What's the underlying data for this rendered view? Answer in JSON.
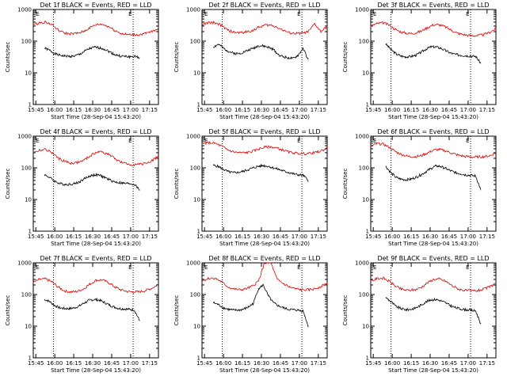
{
  "figure": {
    "ylabel": "Counts/sec",
    "xlabel": "Start Time (28-Sep-04 15:43:20)",
    "colors": {
      "events": "#000000",
      "lld": "#e00000",
      "axes": "#000000",
      "background": "#ffffff"
    },
    "flag_labels": [
      "E",
      "E"
    ]
  },
  "chart_data": [
    {
      "type": "line",
      "title": "Det 1f BLACK = Events, RED = LLD",
      "xlabel": "Start Time (28-Sep-04 15:43:20)",
      "ylabel": "Counts/sec",
      "x_tick_labels": [
        "15:45",
        "16:00",
        "16:15",
        "16:30",
        "16:45",
        "17:00",
        "17:15"
      ],
      "x_tick_values": [
        "15:45",
        "16:00",
        "16:15",
        "16:30",
        "16:45",
        "17:00",
        "17:15"
      ],
      "xlim": [
        "15:43",
        "17:22"
      ],
      "ylim": [
        1,
        1000
      ],
      "yscale": "log",
      "y_tick_labels": [
        "1",
        "10",
        "100",
        "1000"
      ],
      "vlines": [
        "15:59",
        "17:02"
      ],
      "series": [
        {
          "name": "Events",
          "color": "#000000",
          "x_start": "15:52",
          "x_end": "17:07",
          "values": [
            60,
            52,
            40,
            36,
            34,
            33,
            34,
            38,
            48,
            58,
            64,
            62,
            56,
            46,
            38,
            34,
            33,
            32,
            33,
            30
          ]
        },
        {
          "name": "LLD",
          "color": "#e00000",
          "x_start": "15:43",
          "x_end": "17:22",
          "values": [
            320,
            380,
            400,
            330,
            220,
            180,
            170,
            175,
            200,
            260,
            330,
            340,
            290,
            220,
            175,
            160,
            158,
            160,
            175,
            200,
            260
          ]
        }
      ]
    },
    {
      "type": "line",
      "title": "Det 2f BLACK = Events, RED = LLD",
      "xlabel": "Start Time (28-Sep-04 15:43:20)",
      "ylabel": "Counts/sec",
      "x_tick_labels": [
        "15:45",
        "16:00",
        "16:15",
        "16:30",
        "16:45",
        "17:00",
        "17:15"
      ],
      "x_tick_values": [
        "15:45",
        "16:00",
        "16:15",
        "16:30",
        "16:45",
        "17:00",
        "17:15"
      ],
      "xlim": [
        "15:43",
        "17:22"
      ],
      "ylim": [
        1,
        1000
      ],
      "yscale": "log",
      "y_tick_labels": [
        "1",
        "10",
        "100",
        "1000"
      ],
      "vlines": [
        "15:59",
        "17:02"
      ],
      "series": [
        {
          "name": "Events",
          "color": "#000000",
          "x_start": "15:52",
          "x_end": "17:07",
          "values": [
            65,
            80,
            60,
            48,
            42,
            40,
            45,
            52,
            60,
            72,
            70,
            64,
            55,
            38,
            32,
            30,
            28,
            36,
            60,
            25
          ]
        },
        {
          "name": "LLD",
          "color": "#e00000",
          "x_start": "15:43",
          "x_end": "17:22",
          "values": [
            330,
            380,
            390,
            320,
            230,
            190,
            185,
            195,
            215,
            270,
            320,
            320,
            280,
            220,
            180,
            175,
            180,
            200,
            350,
            200,
            290
          ]
        }
      ]
    },
    {
      "type": "line",
      "title": "Det 3f BLACK = Events, RED = LLD",
      "xlabel": "Start Time (28-Sep-04 15:43:20)",
      "ylabel": "Counts/sec",
      "x_tick_labels": [
        "15:45",
        "16:00",
        "16:15",
        "16:30",
        "16:45",
        "17:00",
        "17:15"
      ],
      "x_tick_values": [
        "15:45",
        "16:00",
        "16:15",
        "16:30",
        "16:45",
        "17:00",
        "17:15"
      ],
      "xlim": [
        "15:43",
        "17:22"
      ],
      "ylim": [
        1,
        1000
      ],
      "yscale": "log",
      "y_tick_labels": [
        "1",
        "10",
        "100",
        "1000"
      ],
      "vlines": [
        "15:59",
        "17:02"
      ],
      "series": [
        {
          "name": "Events",
          "color": "#000000",
          "x_start": "15:55",
          "x_end": "17:10",
          "values": [
            80,
            55,
            40,
            34,
            32,
            33,
            36,
            44,
            56,
            66,
            66,
            60,
            50,
            42,
            38,
            36,
            35,
            34,
            33,
            20
          ]
        },
        {
          "name": "LLD",
          "color": "#e00000",
          "x_start": "15:43",
          "x_end": "17:22",
          "values": [
            300,
            360,
            380,
            320,
            230,
            190,
            175,
            180,
            205,
            265,
            330,
            330,
            280,
            215,
            175,
            160,
            150,
            150,
            160,
            190,
            250
          ]
        }
      ]
    },
    {
      "type": "line",
      "title": "Det 4f BLACK = Events, RED = LLD",
      "xlabel": "Start Time (28-Sep-04 15:43:20)",
      "ylabel": "Counts/sec",
      "x_tick_labels": [
        "15:45",
        "16:00",
        "16:15",
        "16:30",
        "16:45",
        "17:00",
        "17:15"
      ],
      "x_tick_values": [
        "15:45",
        "16:00",
        "16:15",
        "16:30",
        "16:45",
        "17:00",
        "17:15"
      ],
      "xlim": [
        "15:43",
        "17:22"
      ],
      "ylim": [
        1,
        1000
      ],
      "yscale": "log",
      "y_tick_labels": [
        "1",
        "10",
        "100",
        "1000"
      ],
      "vlines": [
        "15:59",
        "17:02"
      ],
      "series": [
        {
          "name": "Events",
          "color": "#000000",
          "x_start": "15:52",
          "x_end": "17:07",
          "values": [
            60,
            50,
            38,
            32,
            30,
            30,
            32,
            36,
            46,
            55,
            60,
            58,
            50,
            42,
            36,
            34,
            32,
            32,
            30,
            20
          ]
        },
        {
          "name": "LLD",
          "color": "#e00000",
          "x_start": "15:43",
          "x_end": "17:22",
          "values": [
            300,
            360,
            380,
            300,
            200,
            160,
            140,
            145,
            170,
            230,
            310,
            320,
            270,
            200,
            150,
            130,
            125,
            128,
            140,
            170,
            240
          ]
        }
      ]
    },
    {
      "type": "line",
      "title": "Det 5f BLACK = Events, RED = LLD",
      "xlabel": "Start Time (28-Sep-04 15:43:20)",
      "ylabel": "Counts/sec",
      "x_tick_labels": [
        "15:45",
        "16:00",
        "16:15",
        "16:30",
        "16:45",
        "17:00",
        "17:15"
      ],
      "x_tick_values": [
        "15:45",
        "16:00",
        "16:15",
        "16:30",
        "16:45",
        "17:00",
        "17:15"
      ],
      "xlim": [
        "15:43",
        "17:22"
      ],
      "ylim": [
        1,
        1000
      ],
      "yscale": "log",
      "y_tick_labels": [
        "1",
        "10",
        "100",
        "1000"
      ],
      "vlines": [
        "15:59",
        "17:02"
      ],
      "series": [
        {
          "name": "Events",
          "color": "#000000",
          "x_start": "15:52",
          "x_end": "17:07",
          "values": [
            120,
            110,
            90,
            75,
            70,
            72,
            78,
            88,
            100,
            112,
            118,
            112,
            100,
            90,
            80,
            72,
            65,
            60,
            58,
            40
          ]
        },
        {
          "name": "LLD",
          "color": "#e00000",
          "x_start": "15:43",
          "x_end": "17:22",
          "values": [
            560,
            620,
            600,
            500,
            380,
            320,
            300,
            300,
            330,
            390,
            450,
            460,
            420,
            360,
            310,
            290,
            280,
            285,
            300,
            340,
            420
          ]
        }
      ]
    },
    {
      "type": "line",
      "title": "Det 6f BLACK = Events, RED = LLD",
      "xlabel": "Start Time (28-Sep-04 15:43:20)",
      "ylabel": "Counts/sec",
      "x_tick_labels": [
        "15:45",
        "16:00",
        "16:15",
        "16:30",
        "16:45",
        "17:00",
        "17:15"
      ],
      "x_tick_values": [
        "15:45",
        "16:00",
        "16:15",
        "16:30",
        "16:45",
        "17:00",
        "17:15"
      ],
      "xlim": [
        "15:43",
        "17:22"
      ],
      "ylim": [
        1,
        1000
      ],
      "yscale": "log",
      "y_tick_labels": [
        "1",
        "10",
        "100",
        "1000"
      ],
      "vlines": [
        "15:59",
        "17:02"
      ],
      "series": [
        {
          "name": "Events",
          "color": "#000000",
          "x_start": "15:55",
          "x_end": "17:10",
          "values": [
            110,
            70,
            50,
            44,
            42,
            44,
            50,
            60,
            75,
            95,
            115,
            110,
            95,
            80,
            70,
            65,
            60,
            58,
            55,
            20
          ]
        },
        {
          "name": "LLD",
          "color": "#e00000",
          "x_start": "15:43",
          "x_end": "17:22",
          "values": [
            480,
            580,
            560,
            440,
            320,
            260,
            230,
            225,
            240,
            290,
            360,
            380,
            340,
            290,
            250,
            230,
            220,
            220,
            225,
            240,
            300
          ]
        }
      ]
    },
    {
      "type": "line",
      "title": "Det 7f BLACK = Events, RED = LLD",
      "xlabel": "Start Time (28-Sep-04 15:43:20)",
      "ylabel": "Counts/sec",
      "x_tick_labels": [
        "15:45",
        "16:00",
        "16:15",
        "16:30",
        "16:45",
        "17:00",
        "17:15"
      ],
      "x_tick_values": [
        "15:45",
        "16:00",
        "16:15",
        "16:30",
        "16:45",
        "17:00",
        "17:15"
      ],
      "xlim": [
        "15:43",
        "17:22"
      ],
      "ylim": [
        1,
        1000
      ],
      "yscale": "log",
      "y_tick_labels": [
        "1",
        "10",
        "100",
        "1000"
      ],
      "vlines": [
        "15:59",
        "17:02"
      ],
      "series": [
        {
          "name": "Events",
          "color": "#000000",
          "x_start": "15:52",
          "x_end": "17:07",
          "values": [
            70,
            60,
            45,
            38,
            36,
            36,
            38,
            44,
            55,
            66,
            70,
            66,
            56,
            46,
            40,
            36,
            35,
            34,
            32,
            15
          ]
        },
        {
          "name": "LLD",
          "color": "#e00000",
          "x_start": "15:43",
          "x_end": "17:22",
          "values": [
            240,
            300,
            310,
            250,
            170,
            130,
            120,
            125,
            150,
            210,
            280,
            290,
            240,
            175,
            140,
            125,
            120,
            122,
            135,
            160,
            210
          ]
        }
      ]
    },
    {
      "type": "line",
      "title": "Det 8f BLACK = Events, RED = LLD",
      "xlabel": "Start Time (28-Sep-04 15:43:20)",
      "ylabel": "Counts/sec",
      "x_tick_labels": [
        "15:45",
        "16:00",
        "16:15",
        "16:30",
        "16:45",
        "17:00",
        "17:15"
      ],
      "x_tick_values": [
        "15:45",
        "16:00",
        "16:15",
        "16:30",
        "16:45",
        "17:00",
        "17:15"
      ],
      "xlim": [
        "15:43",
        "17:22"
      ],
      "ylim": [
        1,
        1000
      ],
      "yscale": "log",
      "y_tick_labels": [
        "1",
        "10",
        "100",
        "1000"
      ],
      "vlines": [
        "15:59",
        "17:02"
      ],
      "series": [
        {
          "name": "Events",
          "color": "#000000",
          "x_start": "15:52",
          "x_end": "17:07",
          "values": [
            55,
            48,
            38,
            34,
            32,
            32,
            34,
            40,
            52,
            150,
            200,
            90,
            55,
            44,
            38,
            34,
            33,
            32,
            30,
            10
          ]
        },
        {
          "name": "LLD",
          "color": "#e00000",
          "x_start": "15:43",
          "x_end": "17:22",
          "values": [
            270,
            320,
            330,
            260,
            180,
            150,
            140,
            150,
            180,
            260,
            1000,
            1000,
            300,
            220,
            170,
            150,
            140,
            140,
            150,
            180,
            230
          ]
        }
      ]
    },
    {
      "type": "line",
      "title": "Det 9f BLACK = Events, RED = LLD",
      "xlabel": "Start Time (28-Sep-04 15:43:20)",
      "ylabel": "Counts/sec",
      "x_tick_labels": [
        "15:45",
        "16:00",
        "16:15",
        "16:30",
        "16:45",
        "17:00",
        "17:15"
      ],
      "x_tick_values": [
        "15:45",
        "16:00",
        "16:15",
        "16:30",
        "16:45",
        "17:00",
        "17:15"
      ],
      "xlim": [
        "15:43",
        "17:22"
      ],
      "ylim": [
        1,
        1000
      ],
      "yscale": "log",
      "y_tick_labels": [
        "1",
        "10",
        "100",
        "1000"
      ],
      "vlines": [
        "15:59",
        "17:02"
      ],
      "series": [
        {
          "name": "Events",
          "color": "#000000",
          "x_start": "15:55",
          "x_end": "17:10",
          "values": [
            80,
            60,
            42,
            36,
            33,
            34,
            38,
            46,
            58,
            68,
            70,
            64,
            54,
            44,
            38,
            35,
            33,
            32,
            30,
            12
          ]
        },
        {
          "name": "LLD",
          "color": "#e00000",
          "x_start": "15:43",
          "x_end": "17:22",
          "values": [
            260,
            320,
            330,
            260,
            180,
            145,
            135,
            140,
            165,
            230,
            300,
            310,
            260,
            190,
            150,
            135,
            130,
            132,
            145,
            175,
            230
          ]
        }
      ]
    }
  ]
}
